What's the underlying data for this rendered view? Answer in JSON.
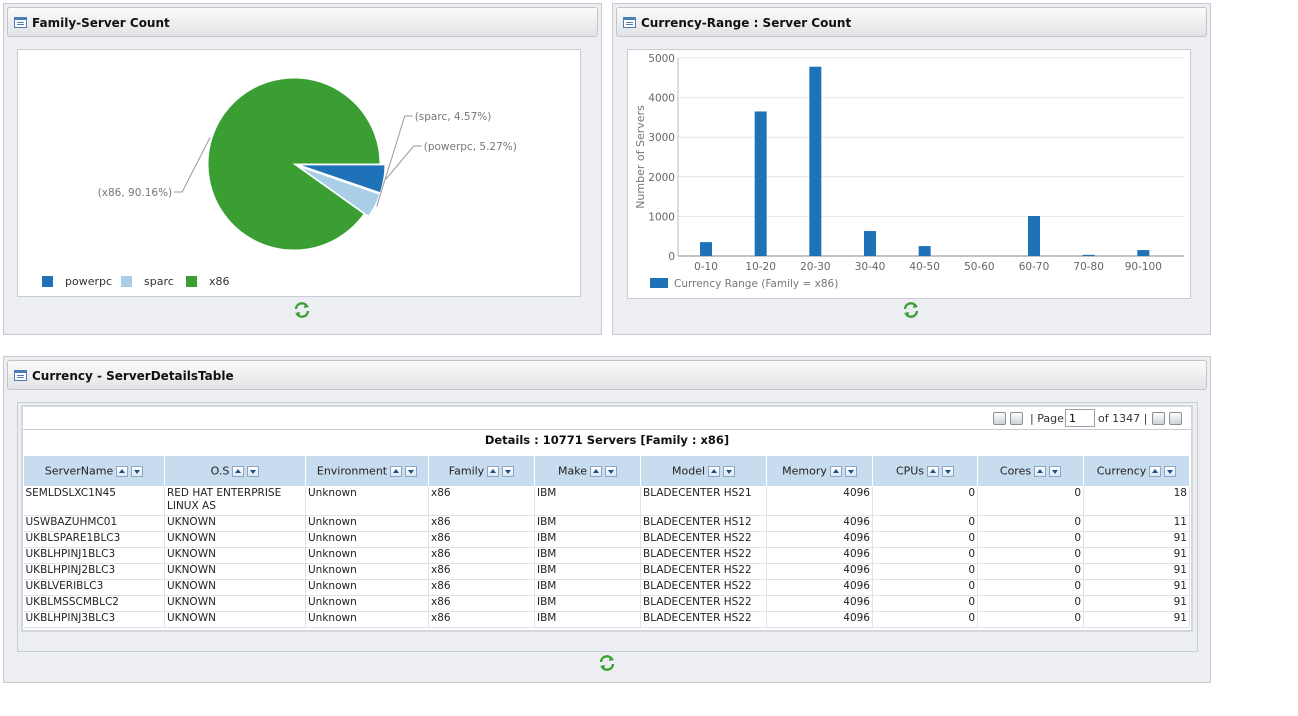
{
  "panels": {
    "family": {
      "title": "Family-Server Count"
    },
    "currency_range": {
      "title": "Currency-Range : Server Count"
    },
    "details": {
      "title": "Currency - ServerDetailsTable"
    }
  },
  "chart_data": [
    {
      "type": "pie",
      "title": "",
      "slices": [
        {
          "name": "powerpc",
          "value": 5.27,
          "label": "(powerpc, 5.27%)",
          "color": "#2072b8"
        },
        {
          "name": "sparc",
          "value": 4.57,
          "label": "(sparc, 4.57%)",
          "color": "#a9cfe8"
        },
        {
          "name": "x86",
          "value": 90.16,
          "label": "(x86, 90.16%)",
          "color": "#3a9e32"
        }
      ],
      "legend": [
        "powerpc",
        "sparc",
        "x86"
      ],
      "legend_position": "bottom-left"
    },
    {
      "type": "bar",
      "title": "",
      "categories": [
        "0-10",
        "10-20",
        "20-30",
        "30-40",
        "40-50",
        "50-60",
        "60-70",
        "70-80",
        "90-100"
      ],
      "series": [
        {
          "name": "Currency Range (Family =  x86)",
          "values": [
            350,
            3650,
            4780,
            630,
            250,
            0,
            1010,
            30,
            150
          ],
          "color": "#2072b8"
        }
      ],
      "ylabel": "Number of Servers",
      "xlabel": "",
      "ylim": [
        0,
        5000
      ],
      "yticks": [
        "0",
        "1000",
        "2000",
        "3000",
        "4000",
        "5000"
      ],
      "grid": true,
      "legend_position": "bottom-left"
    }
  ],
  "table": {
    "pager": {
      "page_label": "| Page",
      "page_value": "1",
      "of_label": "of 1347 |"
    },
    "caption": "Details : 10771 Servers [Family : x86]",
    "columns": [
      "ServerName",
      "O.S",
      "Environment",
      "Family",
      "Make",
      "Model",
      "Memory",
      "CPUs",
      "Cores",
      "Currency"
    ],
    "rows": [
      [
        "SEMLDSLXC1N45",
        "RED HAT ENTERPRISE LINUX AS",
        "Unknown",
        "x86",
        "IBM",
        "BLADECENTER HS21",
        "4096",
        "0",
        "0",
        "18"
      ],
      [
        "USWBAZUHMC01",
        "UKNOWN",
        "Unknown",
        "x86",
        "IBM",
        "BLADECENTER HS12",
        "4096",
        "0",
        "0",
        "11"
      ],
      [
        "UKBLSPARE1BLC3",
        "UKNOWN",
        "Unknown",
        "x86",
        "IBM",
        "BLADECENTER HS22",
        "4096",
        "0",
        "0",
        "91"
      ],
      [
        "UKBLHPINJ1BLC3",
        "UKNOWN",
        "Unknown",
        "x86",
        "IBM",
        "BLADECENTER HS22",
        "4096",
        "0",
        "0",
        "91"
      ],
      [
        "UKBLHPINJ2BLC3",
        "UKNOWN",
        "Unknown",
        "x86",
        "IBM",
        "BLADECENTER HS22",
        "4096",
        "0",
        "0",
        "91"
      ],
      [
        "UKBLVERIBLC3",
        "UKNOWN",
        "Unknown",
        "x86",
        "IBM",
        "BLADECENTER HS22",
        "4096",
        "0",
        "0",
        "91"
      ],
      [
        "UKBLMSSCMBLC2",
        "UKNOWN",
        "Unknown",
        "x86",
        "IBM",
        "BLADECENTER HS22",
        "4096",
        "0",
        "0",
        "91"
      ],
      [
        "UKBLHPINJ3BLC3",
        "UKNOWN",
        "Unknown",
        "x86",
        "IBM",
        "BLADECENTER HS22",
        "4096",
        "0",
        "0",
        "91"
      ]
    ]
  },
  "icons": {
    "panel": "panel-window-icon",
    "refresh": "refresh-icon",
    "sort_up": "sort-ascending-icon",
    "sort_down": "sort-descending-icon",
    "first": "first-page-icon",
    "prev": "previous-page-icon",
    "next": "next-page-icon",
    "last": "last-page-icon"
  }
}
